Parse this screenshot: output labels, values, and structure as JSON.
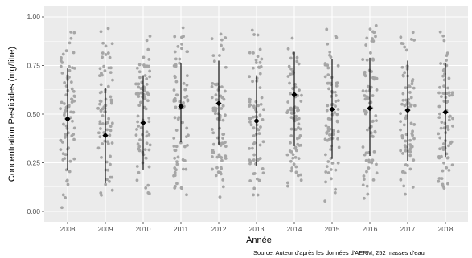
{
  "chart_data": {
    "type": "scatter",
    "title": "",
    "xlabel": "Année",
    "ylabel": "Concentration Pesticides (mg/litre)",
    "caption": "Source: Auteur d'après les données d'AERM, 252 masses d'eau",
    "categories": [
      "2008",
      "2009",
      "2010",
      "2011",
      "2012",
      "2013",
      "2014",
      "2015",
      "2016",
      "2017",
      "2018"
    ],
    "ylim": [
      0,
      1
    ],
    "yticks": [
      0.0,
      0.25,
      0.5,
      0.75,
      1.0
    ],
    "ytick_labels": [
      "0.00",
      "0.25",
      "0.50",
      "0.75",
      "1.00"
    ],
    "grid": true,
    "mean": [
      0.475,
      0.39,
      0.455,
      0.54,
      0.555,
      0.465,
      0.6,
      0.525,
      0.53,
      0.52,
      0.51
    ],
    "sd_low": [
      0.215,
      0.145,
      0.215,
      0.355,
      0.34,
      0.235,
      0.335,
      0.27,
      0.285,
      0.26,
      0.28
    ],
    "sd_high": [
      0.735,
      0.635,
      0.7,
      0.76,
      0.775,
      0.7,
      0.82,
      0.785,
      0.79,
      0.775,
      0.765
    ],
    "n_points_per_year": 80,
    "colors": {
      "panel": "#ebebeb",
      "grid": "#ffffff",
      "points": "#a6a6a6",
      "summary": "#000000"
    }
  }
}
